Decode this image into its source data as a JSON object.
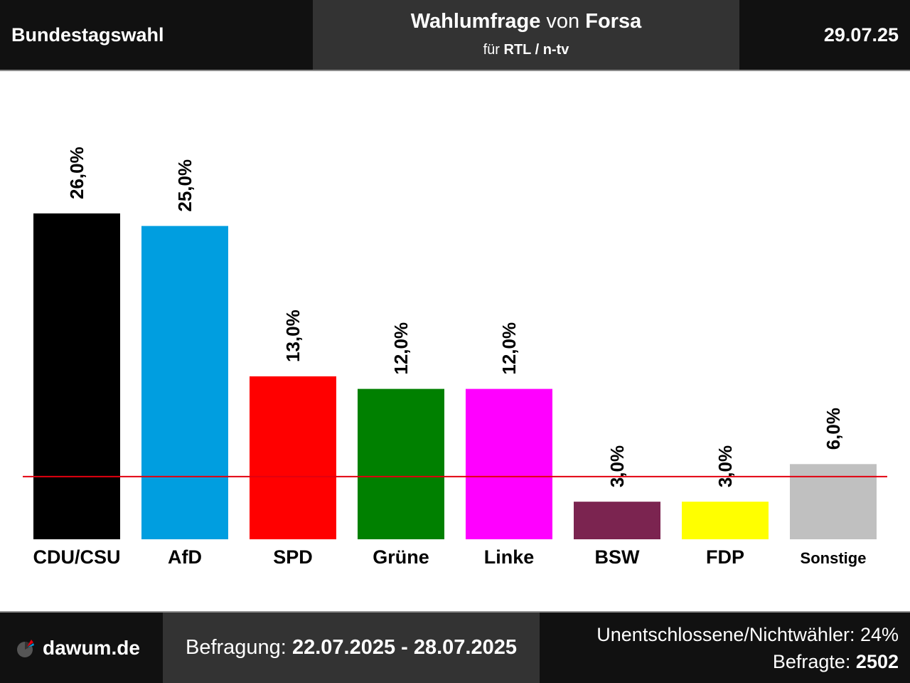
{
  "header": {
    "left": "Bundestagswahl",
    "title_part1": "Wahlumfrage",
    "title_part2": "von",
    "title_part3": "Forsa",
    "subtitle_part1": "für",
    "subtitle_part2": "RTL / n-tv",
    "date": "29.07.25"
  },
  "footer": {
    "logo_text": "dawum.de",
    "period_label": "Befragung:",
    "period_value": "22.07.2025 - 28.07.2025",
    "undecided": "Unentschlossene/Nichtwähler: 24%",
    "respondents_label": "Befragte:",
    "respondents_value": "2502"
  },
  "chart_data": {
    "type": "bar",
    "categories": [
      "CDU/CSU",
      "AfD",
      "SPD",
      "Grüne",
      "Linke",
      "BSW",
      "FDP",
      "Sonstige"
    ],
    "values": [
      26.0,
      25.0,
      13.0,
      12.0,
      12.0,
      3.0,
      3.0,
      6.0
    ],
    "labels": [
      "26,0%",
      "25,0%",
      "13,0%",
      "12,0%",
      "12,0%",
      "3,0%",
      "3,0%",
      "6,0%"
    ],
    "colors": [
      "#000000",
      "#009ee0",
      "#ff0000",
      "#008000",
      "#ff00ff",
      "#7b2450",
      "#ffff00",
      "#c0c0c0"
    ],
    "threshold": 5.0,
    "threshold_color": "#e3000f",
    "ylim": [
      0,
      30
    ]
  }
}
